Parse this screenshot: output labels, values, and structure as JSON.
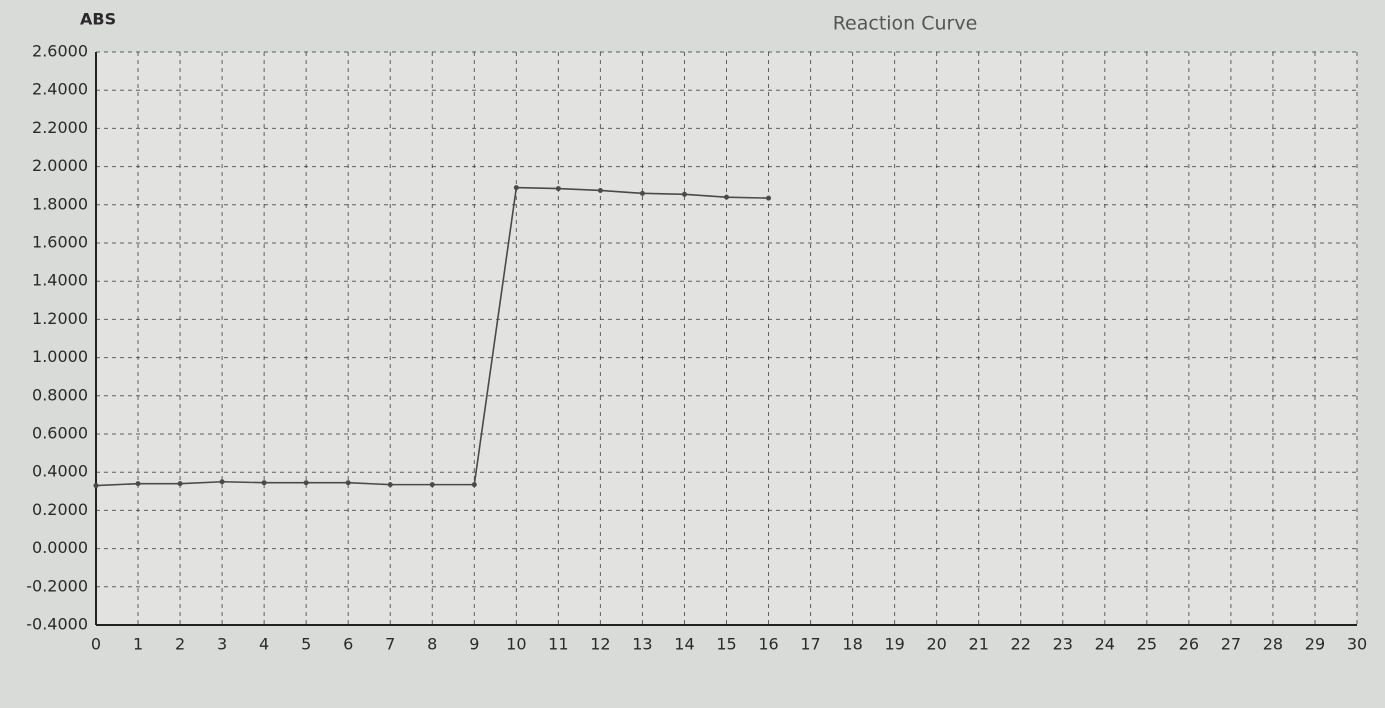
{
  "chart_data": {
    "type": "line",
    "title": "Reaction Curve",
    "y_label": "ABS",
    "color": "#4a4a4a",
    "grid": true,
    "x": [
      0,
      1,
      2,
      3,
      4,
      5,
      6,
      7,
      8,
      9,
      10,
      11,
      12,
      13,
      14,
      15,
      16
    ],
    "values": [
      0.33,
      0.34,
      0.34,
      0.35,
      0.345,
      0.345,
      0.345,
      0.335,
      0.335,
      0.335,
      1.89,
      1.885,
      1.875,
      1.86,
      1.855,
      1.84,
      1.835
    ],
    "xlim": [
      0,
      30
    ],
    "xticks": [
      0,
      1,
      2,
      3,
      4,
      5,
      6,
      7,
      8,
      9,
      10,
      11,
      12,
      13,
      14,
      15,
      16,
      17,
      18,
      19,
      20,
      21,
      22,
      23,
      24,
      25,
      26,
      27,
      28,
      29,
      30
    ],
    "ylim": [
      -0.4,
      2.6
    ],
    "yticks": [
      {
        "value": -0.4,
        "label": "-0.4000"
      },
      {
        "value": -0.2,
        "label": "-0.2000"
      },
      {
        "value": 0,
        "label": "0.0000"
      },
      {
        "value": 0.2,
        "label": "0.2000"
      },
      {
        "value": 0.4,
        "label": "0.4000"
      },
      {
        "value": 0.6,
        "label": "0.6000"
      },
      {
        "value": 0.8,
        "label": "0.8000"
      },
      {
        "value": 1.0,
        "label": "1.0000"
      },
      {
        "value": 1.2,
        "label": "1.2000"
      },
      {
        "value": 1.4,
        "label": "1.4000"
      },
      {
        "value": 1.6,
        "label": "1.6000"
      },
      {
        "value": 1.8,
        "label": "1.8000"
      },
      {
        "value": 2.0,
        "label": "2.0000"
      },
      {
        "value": 2.2,
        "label": "2.2000"
      },
      {
        "value": 2.4,
        "label": "2.4000"
      },
      {
        "value": 2.6,
        "label": "2.6000"
      }
    ]
  }
}
